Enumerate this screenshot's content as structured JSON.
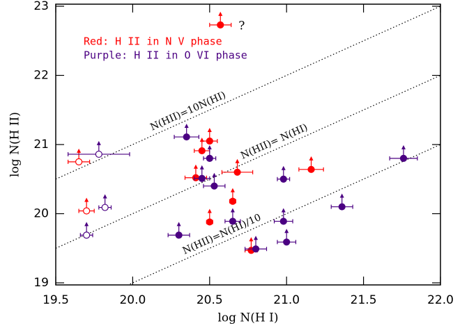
{
  "chart_data": {
    "type": "scatter",
    "x_label": "log N(H I)",
    "y_label": "log N(H II)",
    "xlim": [
      19.5,
      22.0
    ],
    "ylim": [
      18.97,
      23.03
    ],
    "xticks": [
      19.5,
      20.0,
      20.5,
      21.0,
      21.5,
      22.0
    ],
    "yticks": [
      19,
      20,
      21,
      22,
      23
    ],
    "lower_limits": true,
    "legend_texts": [
      {
        "text": "Red: H II in N V phase",
        "color": "#ff0000"
      },
      {
        "text": "Purple: H II in O VI phase",
        "color": "#4b0082"
      }
    ],
    "reference_lines": [
      {
        "label": "N(HII)=10N(HI)",
        "offset": 1
      },
      {
        "label": "N(HII)= N(HI)",
        "offset": 0
      },
      {
        "label": "N(HII)=N(HI)/10",
        "offset": -1
      }
    ],
    "annotations": [
      "?"
    ],
    "series": [
      {
        "color": "#ff0000",
        "marker": "filled",
        "x": [
          20.57,
          20.45,
          20.5,
          20.41,
          20.68,
          20.65,
          20.5,
          21.16,
          20.77
        ],
        "values": [
          22.73,
          20.91,
          21.05,
          20.52,
          20.6,
          20.18,
          19.88,
          20.64,
          19.47
        ],
        "xerr": [
          0.07,
          0.05,
          0.05,
          0.07,
          0.1,
          0.02,
          0.02,
          0.08,
          0.04
        ]
      },
      {
        "color": "#ff0000",
        "marker": "open",
        "x": [
          19.65,
          19.7
        ],
        "values": [
          20.75,
          20.04
        ],
        "xerr": [
          0.07,
          0.05
        ]
      },
      {
        "color": "#4b0082",
        "marker": "filled",
        "x": [
          20.35,
          20.5,
          20.45,
          20.53,
          20.65,
          20.3,
          20.8,
          20.98,
          20.98,
          21.0,
          21.36,
          21.76
        ],
        "values": [
          21.11,
          20.8,
          20.51,
          20.4,
          19.89,
          19.69,
          19.49,
          20.5,
          19.89,
          19.59,
          20.1,
          20.8
        ],
        "xerr": [
          0.08,
          0.04,
          0.05,
          0.07,
          0.05,
          0.07,
          0.07,
          0.04,
          0.06,
          0.06,
          0.07,
          0.09
        ]
      },
      {
        "color": "#4b0082",
        "marker": "open",
        "x": [
          19.78,
          19.82,
          19.7
        ],
        "values": [
          20.86,
          20.09,
          19.69
        ],
        "xerr": [
          0.2,
          0.04,
          0.04
        ]
      }
    ]
  }
}
